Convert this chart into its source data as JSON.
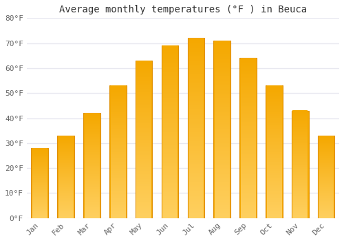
{
  "title": "Average monthly temperatures (°F ) in Beuca",
  "months": [
    "Jan",
    "Feb",
    "Mar",
    "Apr",
    "May",
    "Jun",
    "Jul",
    "Aug",
    "Sep",
    "Oct",
    "Nov",
    "Dec"
  ],
  "values": [
    28,
    33,
    42,
    53,
    63,
    69,
    72,
    71,
    64,
    53,
    43,
    33
  ],
  "bar_color_top": "#F5A800",
  "bar_color_bottom": "#FFD060",
  "bar_edge_color": "#E09000",
  "ylim": [
    0,
    80
  ],
  "yticks": [
    0,
    10,
    20,
    30,
    40,
    50,
    60,
    70,
    80
  ],
  "ytick_labels": [
    "0°F",
    "10°F",
    "20°F",
    "30°F",
    "40°F",
    "50°F",
    "60°F",
    "70°F",
    "80°F"
  ],
  "background_color": "#FFFFFF",
  "grid_color": "#E8E8F0",
  "title_fontsize": 10,
  "tick_fontsize": 8,
  "font_family": "monospace",
  "tick_color": "#666666",
  "title_color": "#333333"
}
